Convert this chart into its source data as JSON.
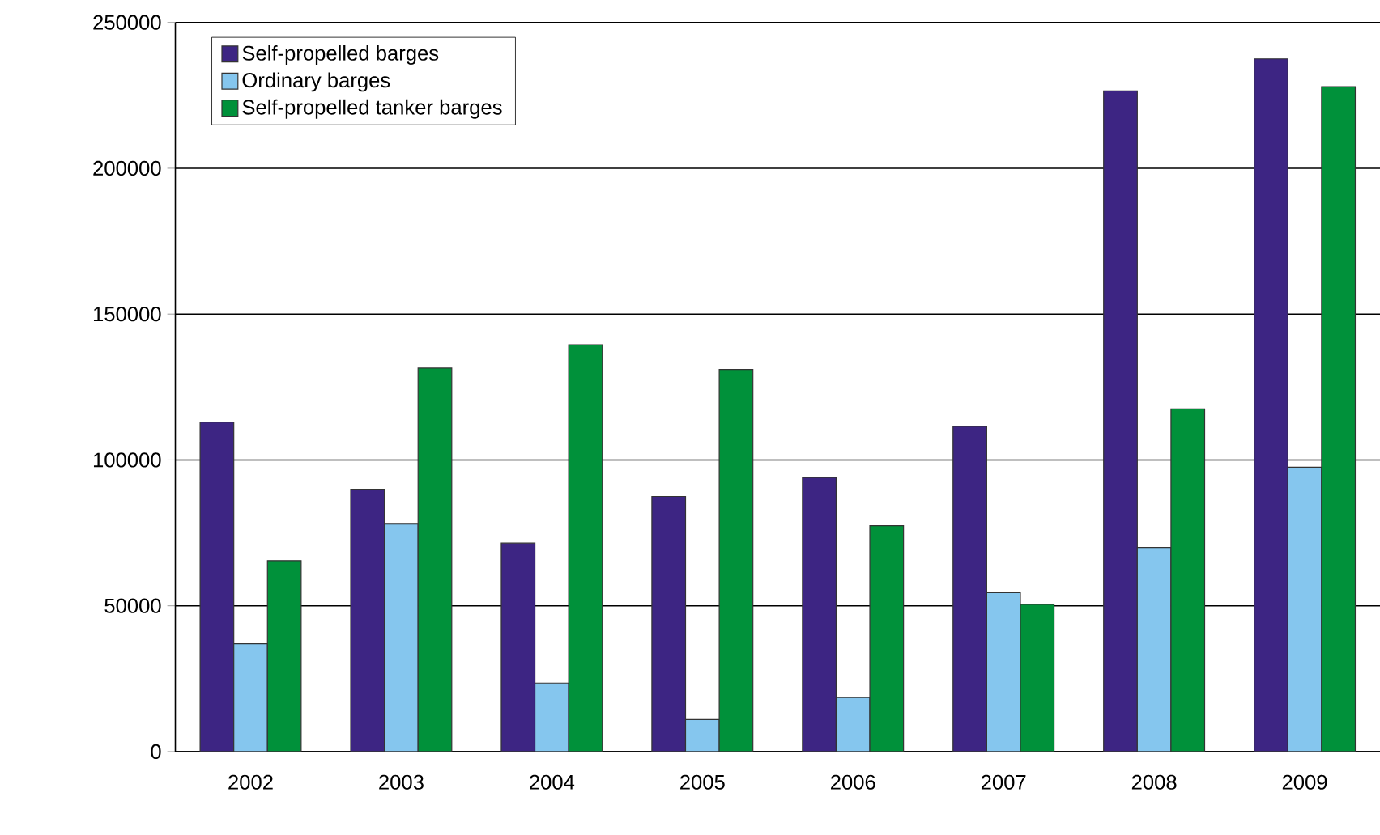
{
  "chart_data": {
    "type": "bar",
    "categories": [
      "2002",
      "2003",
      "2004",
      "2005",
      "2006",
      "2007",
      "2008",
      "2009"
    ],
    "series": [
      {
        "name": "Self-propelled barges",
        "color": "#3d2583",
        "values": [
          113000,
          90000,
          71500,
          87500,
          94000,
          111500,
          226500,
          237500
        ]
      },
      {
        "name": "Ordinary barges",
        "color": "#85c6ee",
        "values": [
          37000,
          78000,
          23500,
          11000,
          18500,
          54500,
          70000,
          97500
        ]
      },
      {
        "name": "Self-propelled tanker barges",
        "color": "#00913a",
        "values": [
          65500,
          131500,
          139500,
          131000,
          77500,
          50500,
          117500,
          228000
        ]
      }
    ],
    "ylim": [
      0,
      250000
    ],
    "yticks": [
      0,
      50000,
      100000,
      150000,
      200000,
      250000
    ],
    "grid": "y",
    "legend": "top left"
  }
}
